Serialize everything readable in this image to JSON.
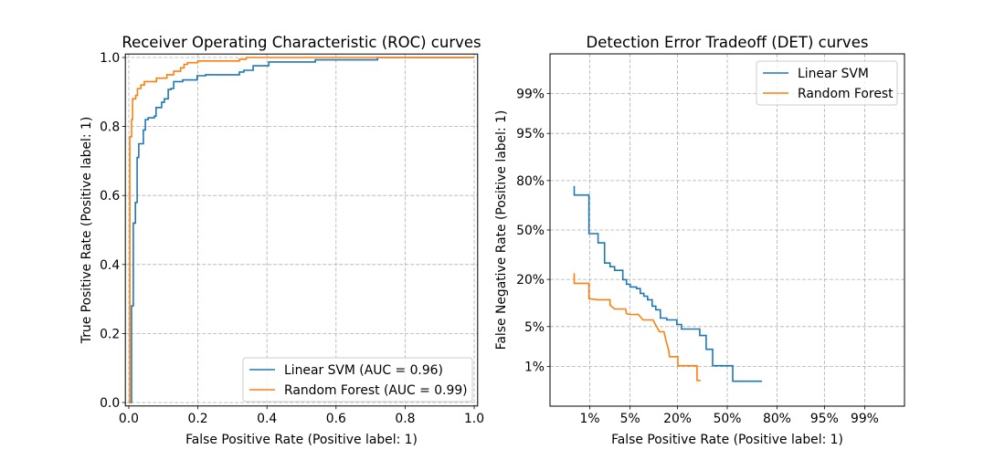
{
  "chart_data": [
    {
      "type": "line",
      "title": "Receiver Operating Characteristic (ROC) curves",
      "xlabel": "False Positive Rate (Positive label: 1)",
      "ylabel": "True Positive Rate (Positive label: 1)",
      "xlim": [
        -0.01,
        1.01
      ],
      "ylim": [
        -0.01,
        1.01
      ],
      "xticks": [
        "0.0",
        "0.2",
        "0.4",
        "0.6",
        "0.8",
        "1.0"
      ],
      "yticks": [
        "0.0",
        "0.2",
        "0.4",
        "0.6",
        "0.8",
        "1.0"
      ],
      "grid": true,
      "legend": "lower-right",
      "series": [
        {
          "name": "Linear SVM (AUC = 0.96)",
          "color": "#1f77b4",
          "points": [
            [
              0,
              0
            ],
            [
              0.008,
              0
            ],
            [
              0.008,
              0.23
            ],
            [
              0.008,
              0.28
            ],
            [
              0.013,
              0.28
            ],
            [
              0.013,
              0.52
            ],
            [
              0.019,
              0.52
            ],
            [
              0.019,
              0.58
            ],
            [
              0.024,
              0.58
            ],
            [
              0.024,
              0.71
            ],
            [
              0.029,
              0.71
            ],
            [
              0.029,
              0.75
            ],
            [
              0.042,
              0.75
            ],
            [
              0.042,
              0.79
            ],
            [
              0.048,
              0.79
            ],
            [
              0.048,
              0.82
            ],
            [
              0.056,
              0.82
            ],
            [
              0.056,
              0.825
            ],
            [
              0.074,
              0.825
            ],
            [
              0.074,
              0.83
            ],
            [
              0.079,
              0.83
            ],
            [
              0.079,
              0.855
            ],
            [
              0.095,
              0.855
            ],
            [
              0.095,
              0.87
            ],
            [
              0.103,
              0.87
            ],
            [
              0.103,
              0.88
            ],
            [
              0.114,
              0.88
            ],
            [
              0.114,
              0.907
            ],
            [
              0.122,
              0.907
            ],
            [
              0.122,
              0.91
            ],
            [
              0.13,
              0.91
            ],
            [
              0.13,
              0.93
            ],
            [
              0.156,
              0.93
            ],
            [
              0.156,
              0.935
            ],
            [
              0.198,
              0.935
            ],
            [
              0.198,
              0.947
            ],
            [
              0.222,
              0.947
            ],
            [
              0.222,
              0.95
            ],
            [
              0.32,
              0.95
            ],
            [
              0.32,
              0.958
            ],
            [
              0.333,
              0.958
            ],
            [
              0.333,
              0.963
            ],
            [
              0.36,
              0.963
            ],
            [
              0.36,
              0.976
            ],
            [
              0.405,
              0.976
            ],
            [
              0.405,
              0.987
            ],
            [
              0.54,
              0.987
            ],
            [
              0.54,
              0.993
            ],
            [
              0.72,
              0.993
            ],
            [
              0.72,
              1.0
            ],
            [
              1.0,
              1.0
            ]
          ]
        },
        {
          "name": "Random Forest (AUC = 0.99)",
          "color": "#ff7f0e",
          "points": [
            [
              0,
              0
            ],
            [
              0.003,
              0
            ],
            [
              0.003,
              0.77
            ],
            [
              0.008,
              0.77
            ],
            [
              0.008,
              0.82
            ],
            [
              0.011,
              0.82
            ],
            [
              0.011,
              0.88
            ],
            [
              0.02,
              0.88
            ],
            [
              0.02,
              0.89
            ],
            [
              0.025,
              0.89
            ],
            [
              0.025,
              0.91
            ],
            [
              0.035,
              0.91
            ],
            [
              0.035,
              0.92
            ],
            [
              0.045,
              0.92
            ],
            [
              0.045,
              0.93
            ],
            [
              0.08,
              0.93
            ],
            [
              0.08,
              0.94
            ],
            [
              0.11,
              0.94
            ],
            [
              0.11,
              0.95
            ],
            [
              0.13,
              0.95
            ],
            [
              0.13,
              0.96
            ],
            [
              0.15,
              0.96
            ],
            [
              0.15,
              0.97
            ],
            [
              0.16,
              0.97
            ],
            [
              0.16,
              0.98
            ],
            [
              0.17,
              0.98
            ],
            [
              0.17,
              0.985
            ],
            [
              0.2,
              0.985
            ],
            [
              0.2,
              0.99
            ],
            [
              0.32,
              0.99
            ],
            [
              0.32,
              0.995
            ],
            [
              0.34,
              0.995
            ],
            [
              0.34,
              1.0
            ],
            [
              1.0,
              1.0
            ]
          ]
        }
      ]
    },
    {
      "type": "line",
      "title": "Detection Error Tradeoff (DET) curves",
      "xlabel": "False Positive Rate (Positive label: 1)",
      "ylabel": "False Negative Rate (Positive label: 1)",
      "scale": "probit",
      "xlim_percent": [
        0.135,
        99.865
      ],
      "ylim_percent": [
        0.135,
        99.865
      ],
      "ticks_percent": [
        1,
        5,
        20,
        50,
        80,
        95,
        99
      ],
      "tick_labels": [
        "1%",
        "5%",
        "20%",
        "50%",
        "80%",
        "95%",
        "99%"
      ],
      "grid": true,
      "legend": "upper-right",
      "series": [
        {
          "name": "Linear SVM",
          "color": "#1f77b4",
          "points": [
            [
              0.48,
              77.3
            ],
            [
              0.48,
              72.4
            ],
            [
              0.96,
              72.4
            ],
            [
              0.96,
              47.5
            ],
            [
              1.44,
              47.5
            ],
            [
              1.44,
              41.3
            ],
            [
              1.89,
              41.3
            ],
            [
              1.89,
              28.7
            ],
            [
              2.36,
              28.7
            ],
            [
              2.36,
              26.6
            ],
            [
              2.83,
              26.6
            ],
            [
              2.83,
              24.6
            ],
            [
              3.86,
              24.6
            ],
            [
              3.86,
              19.9
            ],
            [
              4.41,
              19.9
            ],
            [
              4.41,
              17.8
            ],
            [
              5.02,
              17.8
            ],
            [
              5.02,
              16.6
            ],
            [
              6.24,
              16.6
            ],
            [
              6.24,
              15.9
            ],
            [
              7.04,
              15.9
            ],
            [
              7.04,
              14.05
            ],
            [
              7.91,
              14.05
            ],
            [
              7.91,
              13.0
            ],
            [
              8.87,
              13.0
            ],
            [
              8.87,
              11.75
            ],
            [
              10.19,
              11.75
            ],
            [
              10.19,
              9.73
            ],
            [
              11.33,
              9.73
            ],
            [
              11.33,
              8.71
            ],
            [
              12.88,
              8.71
            ],
            [
              12.88,
              6.68
            ],
            [
              15.31,
              6.68
            ],
            [
              15.31,
              6.29
            ],
            [
              19.68,
              6.29
            ],
            [
              19.68,
              5.38
            ],
            [
              21.92,
              5.38
            ],
            [
              21.92,
              4.58
            ],
            [
              32.1,
              4.58
            ],
            [
              32.1,
              3.62
            ],
            [
              36.05,
              3.62
            ],
            [
              36.05,
              2.11
            ],
            [
              40.2,
              2.11
            ],
            [
              40.2,
              1.04
            ],
            [
              53.7,
              1.04
            ],
            [
              53.7,
              0.5
            ],
            [
              72.2,
              0.5
            ]
          ]
        },
        {
          "name": "Random Forest",
          "color": "#ff7f0e",
          "points": [
            [
              0.48,
              23.1
            ],
            [
              0.48,
              18.2
            ],
            [
              0.96,
              18.2
            ],
            [
              0.96,
              12.1
            ],
            [
              1.44,
              11.75
            ],
            [
              2.36,
              11.75
            ],
            [
              2.36,
              10.0
            ],
            [
              2.83,
              8.95
            ],
            [
              4.26,
              8.95
            ],
            [
              4.41,
              7.75
            ],
            [
              4.86,
              7.53
            ],
            [
              6.63,
              7.53
            ],
            [
              7.69,
              6.29
            ],
            [
              10.46,
              6.29
            ],
            [
              11.03,
              5.55
            ],
            [
              12.57,
              4.15
            ],
            [
              14.23,
              4.15
            ],
            [
              14.94,
              3.04
            ],
            [
              16.06,
              2.03
            ],
            [
              16.43,
              1.55
            ],
            [
              20.13,
              1.55
            ],
            [
              20.13,
              1.04
            ],
            [
              30.44,
              1.04
            ],
            [
              30.44,
              0.52
            ],
            [
              32.64,
              0.52
            ]
          ]
        }
      ]
    }
  ]
}
